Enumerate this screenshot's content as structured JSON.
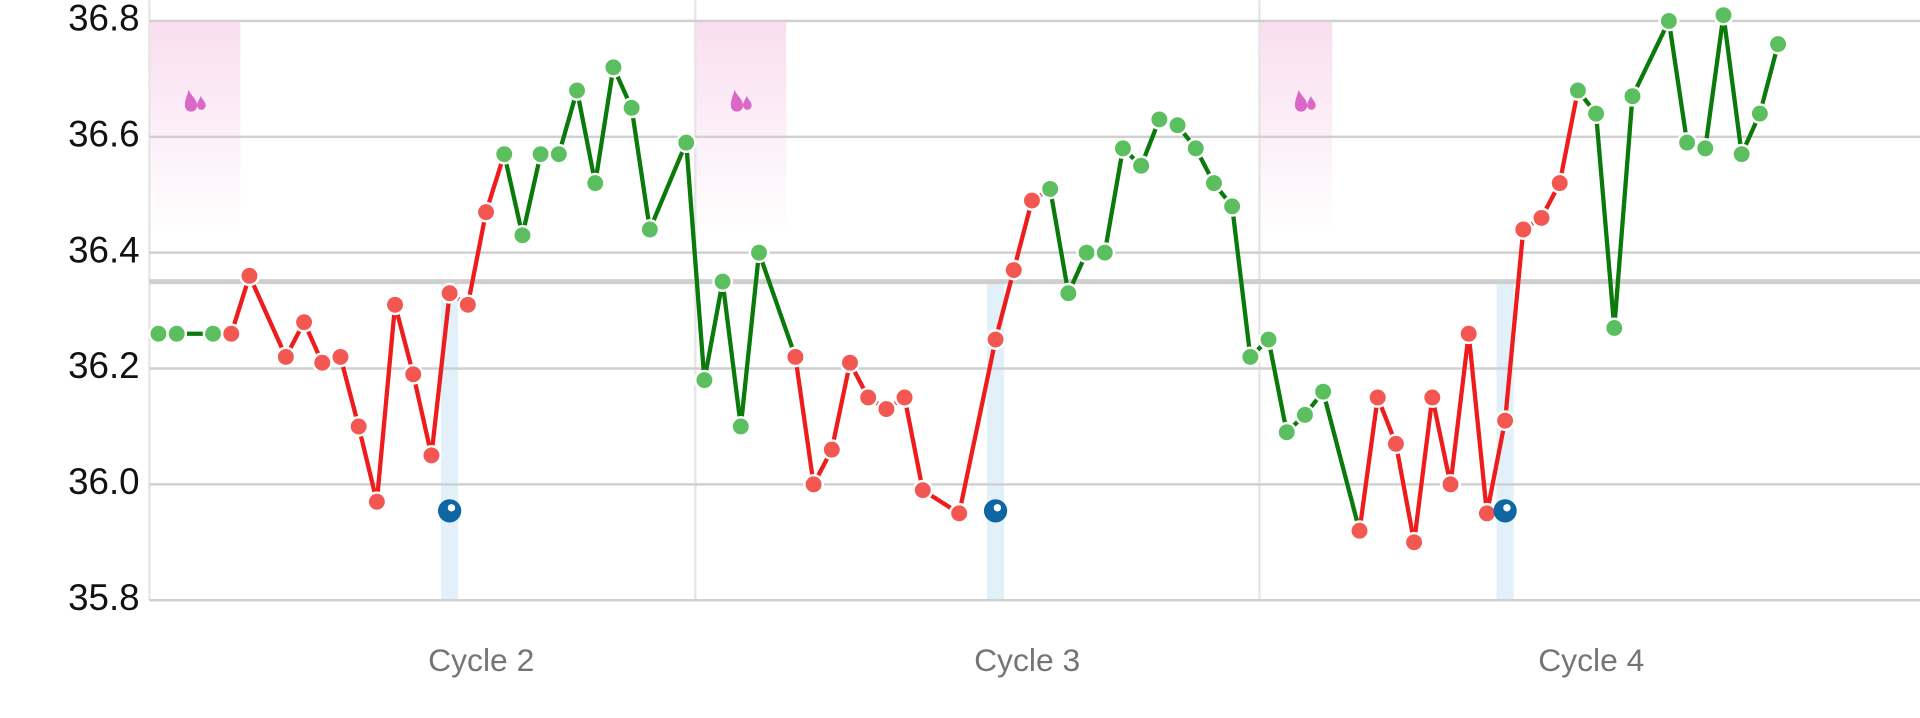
{
  "chart_data": {
    "type": "line",
    "x": [
      0,
      1,
      3,
      4,
      5,
      7,
      8,
      9,
      10,
      11,
      12,
      13,
      14,
      15,
      16,
      17,
      18,
      19,
      20,
      21,
      22,
      23,
      24,
      25,
      26,
      27,
      29,
      30,
      31,
      32,
      33,
      35,
      36,
      37,
      38,
      39,
      40,
      41,
      42,
      44,
      46,
      47,
      48,
      49,
      50,
      51,
      52,
      53,
      54,
      55,
      56,
      57,
      58,
      59,
      60,
      61,
      62,
      63,
      64,
      66,
      67,
      68,
      69,
      70,
      71,
      72,
      73,
      74,
      75,
      76,
      77,
      78,
      79,
      80,
      81,
      83,
      84,
      85,
      86,
      87,
      88,
      89
    ],
    "values": [
      36.26,
      36.26,
      36.26,
      36.26,
      36.36,
      36.22,
      36.28,
      36.21,
      36.22,
      36.1,
      35.97,
      36.31,
      36.19,
      36.05,
      36.33,
      36.31,
      36.47,
      36.57,
      36.43,
      36.57,
      36.57,
      36.68,
      36.52,
      36.72,
      36.65,
      36.44,
      36.59,
      36.18,
      36.35,
      36.1,
      36.4,
      36.22,
      36.0,
      36.06,
      36.21,
      36.15,
      36.13,
      36.15,
      35.99,
      35.95,
      36.25,
      36.37,
      36.49,
      36.51,
      36.33,
      36.4,
      36.4,
      36.58,
      36.55,
      36.63,
      36.62,
      36.58,
      36.52,
      36.48,
      36.22,
      36.25,
      36.09,
      36.12,
      36.16,
      35.92,
      36.15,
      36.07,
      35.9,
      36.15,
      36.0,
      36.26,
      35.95,
      36.11,
      36.44,
      36.46,
      36.52,
      36.68,
      36.64,
      36.27,
      36.67,
      36.8,
      36.59,
      36.58,
      36.81,
      36.57,
      36.64,
      36.76
    ],
    "point_colors": [
      "#5cbf5f",
      "#5cbf5f",
      "#5cbf5f",
      "#f25752",
      "#f25752",
      "#f25752",
      "#f25752",
      "#f25752",
      "#f25752",
      "#f25752",
      "#f25752",
      "#f25752",
      "#f25752",
      "#f25752",
      "#f25752",
      "#f25752",
      "#f25752",
      "#5cbf5f",
      "#5cbf5f",
      "#5cbf5f",
      "#5cbf5f",
      "#5cbf5f",
      "#5cbf5f",
      "#5cbf5f",
      "#5cbf5f",
      "#5cbf5f",
      "#5cbf5f",
      "#5cbf5f",
      "#5cbf5f",
      "#5cbf5f",
      "#5cbf5f",
      "#f25752",
      "#f25752",
      "#f25752",
      "#f25752",
      "#f25752",
      "#f25752",
      "#f25752",
      "#f25752",
      "#f25752",
      "#f25752",
      "#f25752",
      "#f25752",
      "#5cbf5f",
      "#5cbf5f",
      "#5cbf5f",
      "#5cbf5f",
      "#5cbf5f",
      "#5cbf5f",
      "#5cbf5f",
      "#5cbf5f",
      "#5cbf5f",
      "#5cbf5f",
      "#5cbf5f",
      "#5cbf5f",
      "#5cbf5f",
      "#5cbf5f",
      "#5cbf5f",
      "#5cbf5f",
      "#f25752",
      "#f25752",
      "#f25752",
      "#f25752",
      "#f25752",
      "#f25752",
      "#f25752",
      "#f25752",
      "#f25752",
      "#f25752",
      "#f25752",
      "#f25752",
      "#5cbf5f",
      "#5cbf5f",
      "#5cbf5f",
      "#5cbf5f",
      "#5cbf5f",
      "#5cbf5f",
      "#5cbf5f",
      "#5cbf5f",
      "#5cbf5f",
      "#5cbf5f",
      "#5cbf5f"
    ],
    "line_colors": [
      "#0a7a0a",
      "#0a7a0a",
      "#0a7a0a",
      "#ee1c1c",
      "#ee1c1c",
      "#ee1c1c",
      "#ee1c1c",
      "#ee1c1c",
      "#ee1c1c",
      "#ee1c1c",
      "#ee1c1c",
      "#ee1c1c",
      "#ee1c1c",
      "#ee1c1c",
      "#ee1c1c",
      "#ee1c1c",
      "#ee1c1c",
      "#0a7a0a",
      "#0a7a0a",
      "#0a7a0a",
      "#0a7a0a",
      "#0a7a0a",
      "#0a7a0a",
      "#0a7a0a",
      "#0a7a0a",
      "#0a7a0a",
      "#0a7a0a",
      "#0a7a0a",
      "#0a7a0a",
      "#0a7a0a",
      "#0a7a0a",
      "#ee1c1c",
      "#ee1c1c",
      "#ee1c1c",
      "#ee1c1c",
      "#ee1c1c",
      "#ee1c1c",
      "#ee1c1c",
      "#ee1c1c",
      "#ee1c1c",
      "#ee1c1c",
      "#ee1c1c",
      "#ee1c1c",
      "#0a7a0a",
      "#0a7a0a",
      "#0a7a0a",
      "#0a7a0a",
      "#0a7a0a",
      "#0a7a0a",
      "#0a7a0a",
      "#0a7a0a",
      "#0a7a0a",
      "#0a7a0a",
      "#0a7a0a",
      "#0a7a0a",
      "#0a7a0a",
      "#0a7a0a",
      "#0a7a0a",
      "#0a7a0a",
      "#ee1c1c",
      "#ee1c1c",
      "#ee1c1c",
      "#ee1c1c",
      "#ee1c1c",
      "#ee1c1c",
      "#ee1c1c",
      "#ee1c1c",
      "#ee1c1c",
      "#ee1c1c",
      "#ee1c1c",
      "#ee1c1c",
      "#0a7a0a",
      "#0a7a0a",
      "#0a7a0a",
      "#0a7a0a",
      "#0a7a0a",
      "#0a7a0a",
      "#0a7a0a",
      "#0a7a0a",
      "#0a7a0a",
      "#0a7a0a",
      "#0a7a0a"
    ],
    "xlim": [
      -0.5,
      96.8
    ],
    "ylim": [
      35.8,
      36.84
    ],
    "yticks": [
      35.8,
      {
        "value": 36,
        "label": "36.0"
      },
      36.2,
      36.4,
      36.6,
      36.8
    ],
    "grid": true,
    "coverline": 36.35,
    "cycles": [
      {
        "label": "Cycle 2",
        "start": -0.5
      },
      {
        "label": "Cycle 3",
        "start": 29.5
      },
      {
        "label": "Cycle 4",
        "start": 60.5
      }
    ],
    "period_ranges": [
      [
        -0.5,
        4.5
      ],
      [
        29.5,
        34.5
      ],
      [
        60.5,
        64.5
      ]
    ],
    "period_color": "#f9def0",
    "drop_color": "#d968c8",
    "ovulation_days": [
      16,
      46,
      74
    ],
    "ovulation_color": "#0e66a2",
    "ovulation_band_color": "#e2f0fa"
  }
}
